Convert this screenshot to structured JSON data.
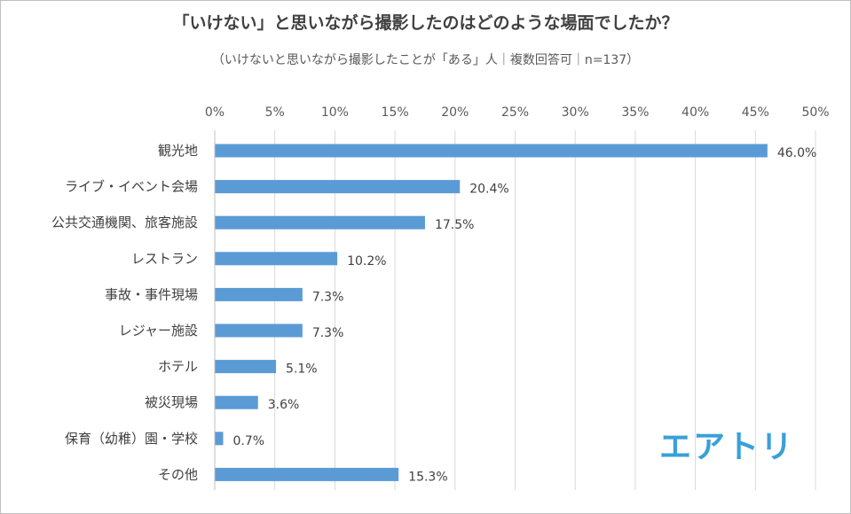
{
  "chart_data": {
    "type": "bar",
    "orientation": "horizontal",
    "title": "「いけない」と思いながら撮影したのはどのような場面でしたか？",
    "subtitle": "（いけないと思いながら撮影したことが「ある」人｜複数回答可｜n=137）",
    "categories": [
      "観光地",
      "ライブ・イベント会場",
      "公共交通機関、旅客施設",
      "レストラン",
      "事故・事件現場",
      "レジャー施設",
      "ホテル",
      "被災現場",
      "保育（幼稚）園・学校",
      "その他"
    ],
    "values": [
      46.0,
      20.4,
      17.5,
      10.2,
      7.3,
      7.3,
      5.1,
      3.6,
      0.7,
      15.3
    ],
    "value_labels": [
      "46.0%",
      "20.4%",
      "17.5%",
      "10.2%",
      "7.3%",
      "7.3%",
      "5.1%",
      "3.6%",
      "0.7%",
      "15.3%"
    ],
    "xlim": [
      0,
      50
    ],
    "ticks": [
      0,
      5,
      10,
      15,
      20,
      25,
      30,
      35,
      40,
      45,
      50
    ],
    "tick_labels": [
      "0%",
      "5%",
      "10%",
      "15%",
      "20%",
      "25%",
      "30%",
      "35%",
      "40%",
      "45%",
      "50%"
    ],
    "axis_position": "top",
    "grid": true,
    "bar_color": "#5b9bd5",
    "grid_color": "#d9d9d9"
  },
  "logo": {
    "text": "エアトリ",
    "color": "#3aa0d8"
  }
}
